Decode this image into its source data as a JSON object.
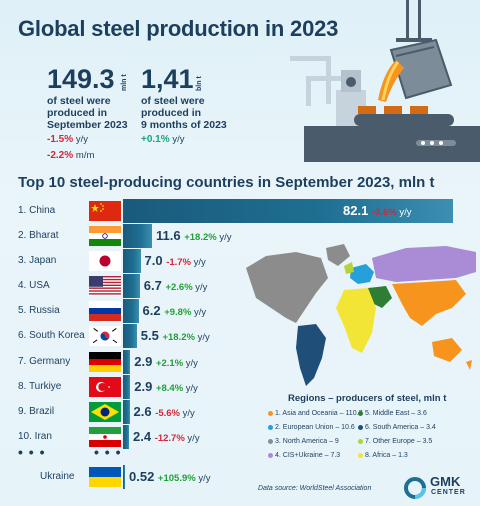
{
  "title": "Global steel production in 2023",
  "stat_month": {
    "value": "149.3",
    "unit": "mln t",
    "description": [
      "of steel were",
      "produced in",
      "September 2023"
    ],
    "change_yoy": "-1.5%",
    "change_yoy_unit": "y/y",
    "change_mom": "-2.2%",
    "change_mom_unit": "m/m"
  },
  "stat_ytd": {
    "value": "1,41",
    "unit": "bln t",
    "description": [
      "of steel were",
      "produced in",
      "9 months of 2023"
    ],
    "change_yoy": "+0.1%",
    "change_yoy_unit": "y/y"
  },
  "section_title": "Top 10 steel-producing countries in September 2023, mln t",
  "chart_data": {
    "type": "bar",
    "title": "Top 10 steel-producing countries in September 2023, mln t",
    "categories": [
      "1. China",
      "2. Bharat",
      "3. Japan",
      "4. USA",
      "5. Russia",
      "6. South Korea",
      "7. Germany",
      "8. Turkiye",
      "9. Brazil",
      "10. Iran",
      "Ukraine"
    ],
    "values": [
      82.1,
      11.6,
      7.0,
      6.7,
      6.2,
      5.5,
      2.9,
      2.9,
      2.6,
      2.4,
      0.52
    ],
    "value_labels": [
      "82.1",
      "11.6",
      "7.0",
      "6.7",
      "6.2",
      "5.5",
      "2.9",
      "2.9",
      "2.6",
      "2.4",
      "0.52"
    ],
    "changes": [
      "-3.6%",
      "+18.2%",
      "-1.7%",
      "+2.6%",
      "+9.8%",
      "+18.2%",
      "+2.1%",
      "+8.4%",
      "-5.6%",
      "-12.7%",
      "+105.9%"
    ],
    "change_unit": "y/y",
    "flags": [
      "china",
      "india",
      "japan",
      "usa",
      "russia",
      "south-korea",
      "germany",
      "turkey",
      "brazil",
      "iran",
      "ukraine"
    ]
  },
  "ellipsis": "• • •",
  "legend": {
    "title": "Regions  – producers of steel, mln t",
    "items": [
      {
        "label": "1. Asia and Oceania – 110.7",
        "color": "#f7941d"
      },
      {
        "label": "5. Middle East – 3.6",
        "color": "#2e7d32"
      },
      {
        "label": "2. European Union – 10.6",
        "color": "#26a0da"
      },
      {
        "label": "6. South America – 3.4",
        "color": "#1f4e79"
      },
      {
        "label": "3. North America – 9",
        "color": "#8c8c8c"
      },
      {
        "label": "7. Other Europe – 3.5",
        "color": "#b5d334"
      },
      {
        "label": "4. CIS+Ukraine – 7.3",
        "color": "#a98bd6"
      },
      {
        "label": "8. Africa – 1.3",
        "color": "#f3e536"
      }
    ]
  },
  "source": "Data source: WorldSteel Association",
  "logo": {
    "line1": "GMK",
    "line2": "CENTER"
  }
}
